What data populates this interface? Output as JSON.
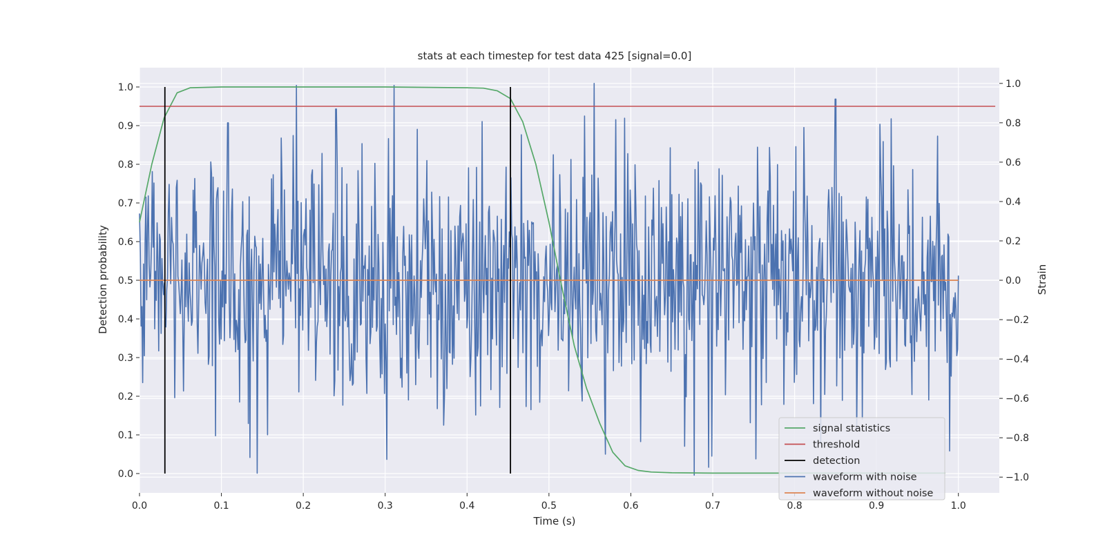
{
  "chart_data": {
    "type": "line",
    "title": "stats at each timestep for test data 425 [signal=0.0]",
    "xlabel": "Time (s)",
    "ylabel_left": "Detection probability",
    "ylabel_right": "Strain",
    "xlim": [
      0.0,
      1.05
    ],
    "ylim_left": [
      -0.05,
      1.05
    ],
    "ylim_right": [
      -1.08,
      1.08
    ],
    "x_ticks": [
      "0.0",
      "0.1",
      "0.2",
      "0.3",
      "0.4",
      "0.5",
      "0.6",
      "0.7",
      "0.8",
      "0.9",
      "1.0"
    ],
    "y_ticks_left": [
      "0.0",
      "0.1",
      "0.2",
      "0.3",
      "0.4",
      "0.5",
      "0.6",
      "0.7",
      "0.8",
      "0.9",
      "1.0"
    ],
    "y_ticks_right": [
      "−1.0",
      "−0.8",
      "−0.6",
      "−0.4",
      "−0.2",
      "0.0",
      "0.2",
      "0.4",
      "0.6",
      "0.8",
      "1.0"
    ],
    "grid": true,
    "legend_position": "lower-right",
    "legend": [
      {
        "label": "signal statistics",
        "color": "#55a868"
      },
      {
        "label": "threshold",
        "color": "#c44e52"
      },
      {
        "label": "detection",
        "color": "#000000"
      },
      {
        "label": "waveform with noise",
        "color": "#4c72b0"
      },
      {
        "label": "waveform without noise",
        "color": "#dd8452"
      }
    ],
    "series": [
      {
        "name": "signal statistics",
        "axis": "left",
        "color": "#55a868",
        "x": [
          0.0,
          0.015,
          0.03,
          0.046,
          0.062,
          0.1,
          0.2,
          0.3,
          0.4,
          0.42,
          0.437,
          0.453,
          0.468,
          0.484,
          0.5,
          0.515,
          0.531,
          0.546,
          0.562,
          0.578,
          0.593,
          0.609,
          0.625,
          0.65,
          0.7,
          0.8,
          0.9,
          0.984
        ],
        "y": [
          0.65,
          0.8,
          0.92,
          0.985,
          0.998,
          1.0,
          1.0,
          1.0,
          0.998,
          0.997,
          0.99,
          0.97,
          0.91,
          0.8,
          0.65,
          0.49,
          0.33,
          0.22,
          0.13,
          0.055,
          0.02,
          0.008,
          0.004,
          0.002,
          0.001,
          0.001,
          0.001,
          0.001
        ]
      },
      {
        "name": "threshold",
        "axis": "left",
        "color": "#c44e52",
        "x": [
          0.0,
          1.045
        ],
        "y": [
          0.95,
          0.95
        ]
      },
      {
        "name": "waveform without noise",
        "axis": "right",
        "color": "#dd8452",
        "x": [
          0.0,
          1.0
        ],
        "y": [
          0.0,
          0.0
        ]
      },
      {
        "name": "waveform with noise",
        "axis": "right",
        "color": "#4c72b0",
        "x_start": 0.0,
        "x_end": 1.0,
        "amplitude": 0.3,
        "peaks": [
          [
            0.108,
            0.8
          ],
          [
            0.24,
            0.87
          ],
          [
            0.555,
            1.0
          ],
          [
            0.85,
            0.92
          ],
          [
            0.144,
            -0.98
          ],
          [
            0.302,
            -0.91
          ],
          [
            0.695,
            -0.95
          ],
          [
            0.135,
            -0.9
          ]
        ]
      }
    ],
    "detections": [
      0.031,
      0.453
    ]
  }
}
